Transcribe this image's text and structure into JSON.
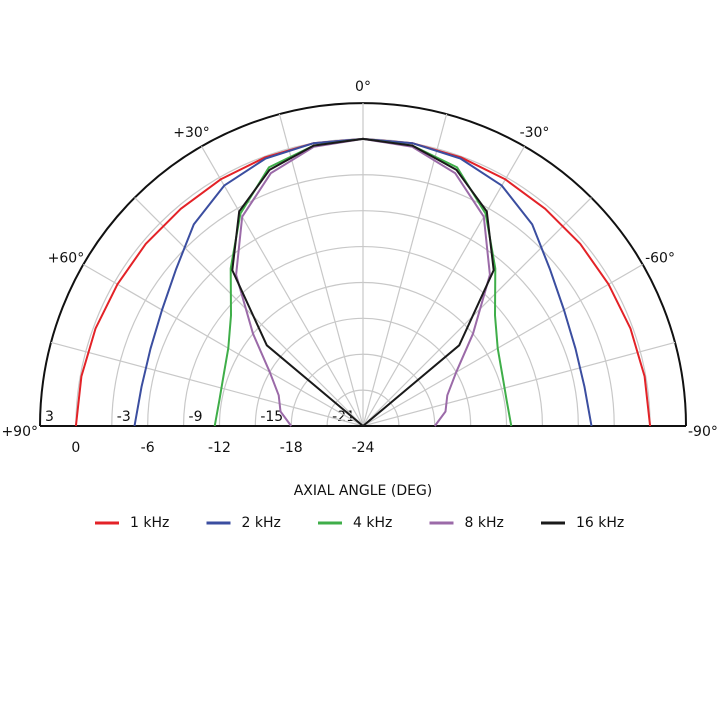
{
  "chart_data": {
    "type": "polar_half",
    "xlabel": "AXIAL ANGLE (DEG)",
    "x": [
      -90,
      -80,
      -70,
      -60,
      -50,
      -40,
      -30,
      -20,
      -10,
      0,
      10,
      20,
      30,
      40,
      50,
      60,
      70,
      80,
      90
    ],
    "series": [
      {
        "name": "1 kHz",
        "color": "#e32227",
        "values": [
          0,
          -0.1,
          -0.2,
          -0.3,
          -0.3,
          -0.3,
          -0.2,
          -0.1,
          0,
          0,
          0,
          -0.1,
          -0.2,
          -0.3,
          -0.3,
          -0.3,
          -0.2,
          -0.1,
          0
        ]
      },
      {
        "name": "2 kHz",
        "color": "#3b4ea0",
        "values": [
          -4.9,
          -5.2,
          -5.1,
          -4.6,
          -3.6,
          -2,
          -0.8,
          -0.2,
          0,
          0,
          0,
          -0.2,
          -0.8,
          -2,
          -3.6,
          -4.6,
          -5.1,
          -5.2,
          -4.9
        ]
      },
      {
        "name": "4 kHz",
        "color": "#3fae49",
        "values": [
          -11.6,
          -11.8,
          -11.6,
          -11,
          -9.6,
          -6.8,
          -3.5,
          -1,
          -0.2,
          0,
          -0.2,
          -1,
          -3.5,
          -6.8,
          -9.6,
          -11,
          -11.6,
          -11.8,
          -11.6
        ]
      },
      {
        "name": "8 kHz",
        "color": "#9b6aa8",
        "values": [
          -18,
          -17,
          -16.5,
          -15,
          -12,
          -7.5,
          -3.8,
          -1.5,
          -0.3,
          0,
          -0.3,
          -1.5,
          -3.8,
          -7.5,
          -12,
          -15,
          -16.5,
          -17,
          -18
        ]
      },
      {
        "name": "16 kHz",
        "color": "#1a1a1a",
        "values": [
          -24,
          -24,
          -24,
          -24,
          -13.5,
          -7,
          -3.3,
          -1.2,
          -0.2,
          0,
          -0.2,
          -1.2,
          -3.3,
          -7,
          -13.5,
          -24,
          -24,
          -24,
          -24
        ]
      }
    ],
    "rlim": [
      -24,
      3
    ],
    "rticks": [
      -24,
      -21,
      -18,
      -15,
      -12,
      -9,
      -6,
      -3,
      0,
      3
    ],
    "angle_grid": [
      -90,
      -75,
      -60,
      -45,
      -30,
      -15,
      0,
      15,
      30,
      45,
      60,
      75,
      90
    ],
    "angle_ticks": [
      {
        "value": 90,
        "label": "+90°"
      },
      {
        "value": 60,
        "label": "+60°"
      },
      {
        "value": 30,
        "label": "+30°"
      },
      {
        "value": 0,
        "label": "0°"
      },
      {
        "value": -30,
        "label": "-30°"
      },
      {
        "value": -60,
        "label": "-60°"
      },
      {
        "value": -90,
        "label": "-90°"
      }
    ]
  }
}
